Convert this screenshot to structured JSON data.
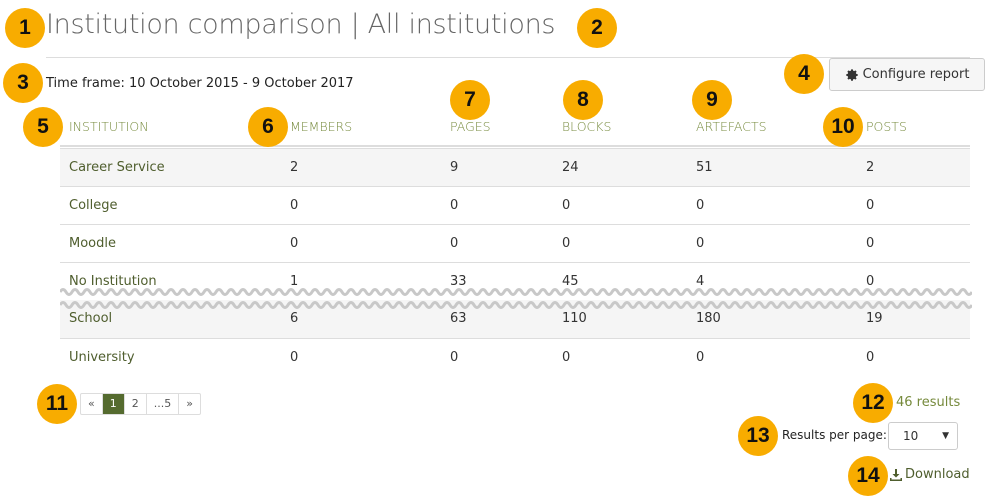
{
  "header": {
    "title": "Institution comparison | All institutions",
    "time_frame": "Time frame: 10 October 2015 - 9 October 2017",
    "configure_label": "Configure report",
    "configure_icon": "gear-icon"
  },
  "table": {
    "columns": [
      "INSTITUTION",
      "MEMBERS",
      "PAGES",
      "BLOCKS",
      "ARTEFACTS",
      "POSTS"
    ],
    "rows": [
      [
        "Career Service",
        "2",
        "9",
        "24",
        "51",
        "2"
      ],
      [
        "College",
        "0",
        "0",
        "0",
        "0",
        "0"
      ],
      [
        "Moodle",
        "0",
        "0",
        "0",
        "0",
        "0"
      ],
      [
        "No Institution",
        "1",
        "33",
        "45",
        "4",
        "0"
      ],
      [
        "School",
        "6",
        "63",
        "110",
        "180",
        "19"
      ],
      [
        "University",
        "0",
        "0",
        "0",
        "0",
        "0"
      ]
    ]
  },
  "pagination": {
    "items": [
      "«",
      "1",
      "2",
      "...5",
      "»"
    ],
    "current": "1"
  },
  "results": "46 results",
  "results_per_page": {
    "label": "Results per page:",
    "value": "10"
  },
  "download": {
    "label": "Download",
    "icon": "download-icon"
  },
  "callouts": [
    "1",
    "2",
    "3",
    "4",
    "5",
    "6",
    "7",
    "8",
    "9",
    "10",
    "11",
    "12",
    "13",
    "14"
  ],
  "colors": {
    "accent": "#556b2f",
    "link": "#4f5e2e",
    "header": "#768a3c",
    "callout": "#f8ac00"
  }
}
